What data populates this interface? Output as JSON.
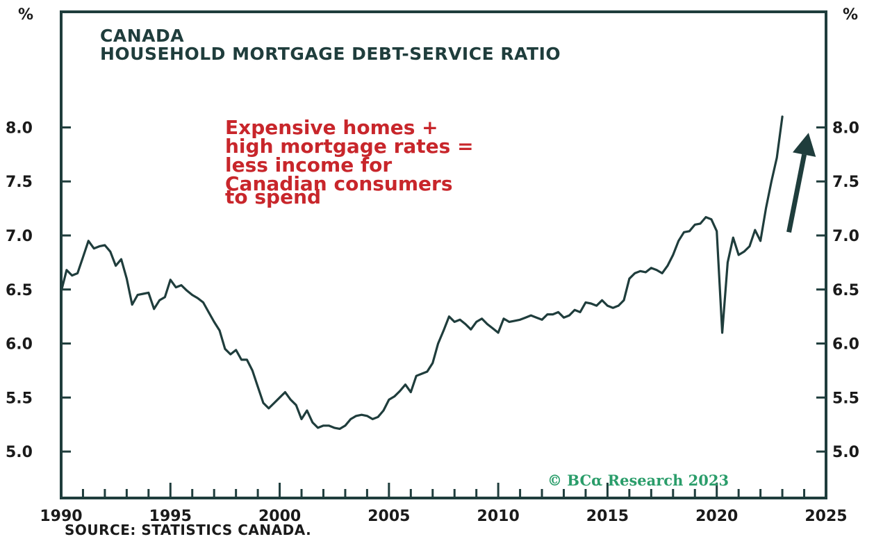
{
  "chart_data": {
    "type": "line",
    "title": "CANADA",
    "subtitle": "HOUSEHOLD MORTGAGE DEBT-SERVICE RATIO",
    "ylabel_left": "%",
    "ylabel_right": "%",
    "xlim": [
      1990,
      2025
    ],
    "ylim": [
      4.57,
      9.07
    ],
    "x_ticks": [
      1990,
      1995,
      2000,
      2005,
      2010,
      2015,
      2020,
      2025
    ],
    "y_ticks": [
      "5.0",
      "5.5",
      "6.0",
      "6.5",
      "7.0",
      "7.5",
      "8.0"
    ],
    "grid": false,
    "series": [
      {
        "name": "",
        "color": "#1f3d3c",
        "x": [
          1990.0,
          1990.25,
          1990.5,
          1990.75,
          1991.0,
          1991.25,
          1991.5,
          1991.75,
          1992.0,
          1992.25,
          1992.5,
          1992.75,
          1993.0,
          1993.25,
          1993.5,
          1993.75,
          1994.0,
          1994.25,
          1994.5,
          1994.75,
          1995.0,
          1995.25,
          1995.5,
          1995.75,
          1996.0,
          1996.25,
          1996.5,
          1996.75,
          1997.0,
          1997.25,
          1997.5,
          1997.75,
          1998.0,
          1998.25,
          1998.5,
          1998.75,
          1999.0,
          1999.25,
          1999.5,
          1999.75,
          2000.0,
          2000.25,
          2000.5,
          2000.75,
          2001.0,
          2001.25,
          2001.5,
          2001.75,
          2002.0,
          2002.25,
          2002.5,
          2002.75,
          2003.0,
          2003.25,
          2003.5,
          2003.75,
          2004.0,
          2004.25,
          2004.5,
          2004.75,
          2005.0,
          2005.25,
          2005.5,
          2005.75,
          2006.0,
          2006.25,
          2006.5,
          2006.75,
          2007.0,
          2007.25,
          2007.5,
          2007.75,
          2008.0,
          2008.25,
          2008.5,
          2008.75,
          2009.0,
          2009.25,
          2009.5,
          2009.75,
          2010.0,
          2010.25,
          2010.5,
          2010.75,
          2011.0,
          2011.25,
          2011.5,
          2011.75,
          2012.0,
          2012.25,
          2012.5,
          2012.75,
          2013.0,
          2013.25,
          2013.5,
          2013.75,
          2014.0,
          2014.25,
          2014.5,
          2014.75,
          2015.0,
          2015.25,
          2015.5,
          2015.75,
          2016.0,
          2016.25,
          2016.5,
          2016.75,
          2017.0,
          2017.25,
          2017.5,
          2017.75,
          2018.0,
          2018.25,
          2018.5,
          2018.75,
          2019.0,
          2019.25,
          2019.5,
          2019.75,
          2020.0,
          2020.25,
          2020.5,
          2020.75,
          2021.0,
          2021.25,
          2021.5,
          2021.75,
          2022.0,
          2022.25,
          2022.5,
          2022.75,
          2023.0
        ],
        "values": [
          6.48,
          6.68,
          6.63,
          6.65,
          6.8,
          6.95,
          6.88,
          6.9,
          6.91,
          6.85,
          6.72,
          6.78,
          6.6,
          6.36,
          6.45,
          6.46,
          6.47,
          6.32,
          6.4,
          6.43,
          6.59,
          6.52,
          6.54,
          6.49,
          6.45,
          6.42,
          6.38,
          6.29,
          6.2,
          6.12,
          5.95,
          5.9,
          5.94,
          5.85,
          5.85,
          5.75,
          5.6,
          5.45,
          5.4,
          5.45,
          5.5,
          5.55,
          5.48,
          5.43,
          5.3,
          5.38,
          5.27,
          5.22,
          5.24,
          5.24,
          5.22,
          5.21,
          5.24,
          5.3,
          5.33,
          5.34,
          5.33,
          5.3,
          5.32,
          5.38,
          5.48,
          5.51,
          5.56,
          5.62,
          5.55,
          5.7,
          5.72,
          5.74,
          5.82,
          6.0,
          6.12,
          6.25,
          6.2,
          6.22,
          6.18,
          6.13,
          6.2,
          6.23,
          6.18,
          6.14,
          6.1,
          6.23,
          6.2,
          6.21,
          6.22,
          6.24,
          6.26,
          6.24,
          6.22,
          6.27,
          6.27,
          6.29,
          6.24,
          6.26,
          6.31,
          6.29,
          6.38,
          6.37,
          6.35,
          6.4,
          6.35,
          6.33,
          6.35,
          6.4,
          6.6,
          6.65,
          6.67,
          6.66,
          6.7,
          6.68,
          6.65,
          6.72,
          6.82,
          6.95,
          7.03,
          7.04,
          7.1,
          7.11,
          7.17,
          7.15,
          7.04,
          6.1,
          6.75,
          6.98,
          6.82,
          6.85,
          6.9,
          7.05,
          6.95,
          7.25,
          7.5,
          7.72,
          8.1
        ]
      }
    ],
    "annotation": [
      "Expensive homes +",
      "high mortgage rates =",
      "less income for",
      "Canadian consumers",
      "to spend"
    ],
    "annotation_color": "#c8262b",
    "arrow": {
      "from": [
        2023.3,
        7.03
      ],
      "to": [
        2024.2,
        7.95
      ],
      "color": "#1f3d3c"
    },
    "copyright": "© BCα Research 2023",
    "source": "SOURCE: STATISTICS CANADA."
  }
}
